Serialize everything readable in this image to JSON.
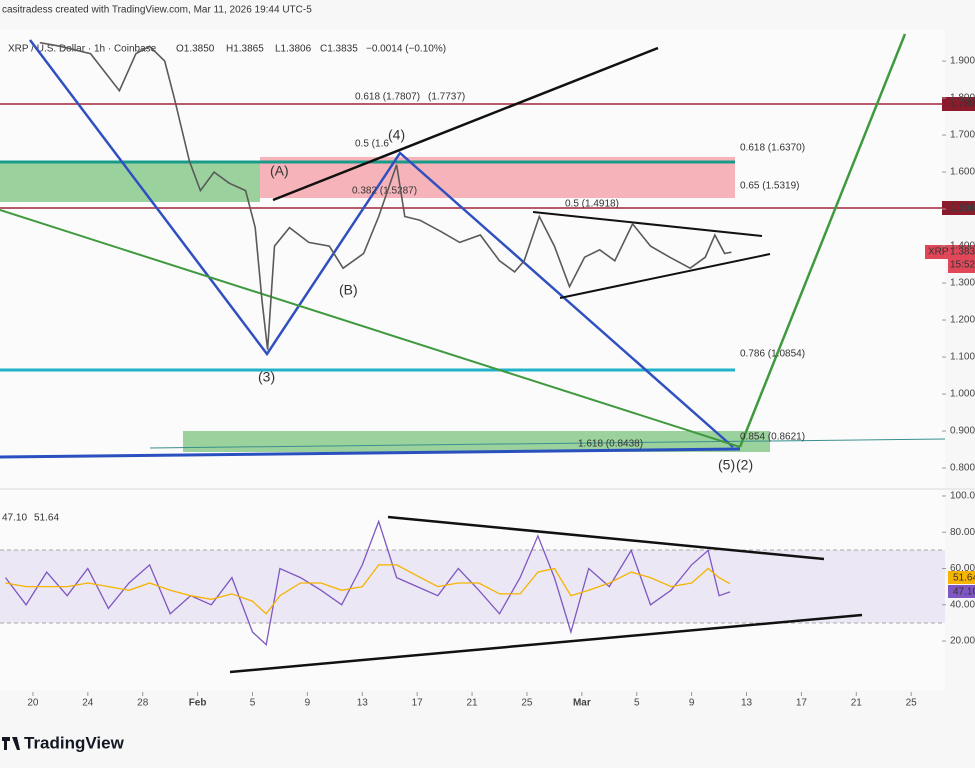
{
  "header": {
    "attribution": "casitradess created with TradingView.com, Mar 11, 2026 19:44 UTC-5",
    "symbol": "XRP / U.S. Dollar · 1h · Coinbase",
    "open": "O1.3850",
    "high": "H1.3865",
    "low": "L1.3806",
    "close": "C1.3835",
    "change": "−0.0014 (−0.10%)"
  },
  "annotations": {
    "fib_1": "0.618 (1.6370)",
    "fib_2": "0.65 (1.5319)",
    "fib_3": "0.5 (1.4918)",
    "fib_4": "0.786 (1.0854)",
    "fib_5": "0.854 (0.8621)",
    "fib_6": "1.618 (0.8438)",
    "fib_7": "0.618 (1.7807)",
    "fib_8": "(1.7737)",
    "fib_9": "0.5 (1.6",
    "fib_10": "0.382 (1.5287)",
    "wave_a": "(A)",
    "wave_b": "(B)",
    "wave_3": "(3)",
    "wave_4": "(4)",
    "wave_5": "(5)",
    "wave_2": "(2)",
    "level_1": "1.780",
    "level_2": "1.501",
    "symbol_tag": "XRPUSD",
    "last_price": "1.383",
    "countdown": "15:52"
  },
  "chart_data": [
    {
      "type": "line",
      "series": [
        {
          "name": "XRPUSD",
          "color": "#5a5a5a",
          "x": [
            20.5,
            22,
            24.2,
            26.3,
            27.5,
            28.5,
            29.6,
            30.3,
            31.4,
            32.2,
            33.2,
            34.3,
            35.5,
            36.2,
            36.7,
            37.1,
            37.6,
            38.7,
            40.1,
            41.6,
            42.6,
            44.1,
            45.2,
            46.5,
            47.1,
            48.2,
            49.7,
            51.1,
            52.6,
            54,
            55.1,
            55.8,
            56.9,
            58,
            59.1,
            60.2,
            61.3,
            62.4,
            63.7,
            65,
            66.4,
            67.9,
            69,
            69.7,
            70.4,
            70.9
          ],
          "values": [
            1.95,
            1.94,
            1.92,
            1.82,
            1.92,
            1.94,
            1.9,
            1.8,
            1.63,
            1.55,
            1.6,
            1.57,
            1.55,
            1.45,
            1.25,
            1.12,
            1.4,
            1.45,
            1.41,
            1.4,
            1.34,
            1.38,
            1.48,
            1.62,
            1.48,
            1.47,
            1.44,
            1.41,
            1.43,
            1.36,
            1.33,
            1.36,
            1.48,
            1.4,
            1.29,
            1.37,
            1.39,
            1.36,
            1.46,
            1.4,
            1.37,
            1.34,
            1.37,
            1.43,
            1.38,
            1.3835
          ]
        }
      ],
      "xlim": [
        17.6,
        86.1
      ],
      "xticks": [
        20,
        24,
        28,
        {
          "value": 32,
          "label": "Feb"
        },
        {
          "value": 36,
          "label": "5"
        },
        {
          "value": 40,
          "label": "9"
        },
        {
          "value": 44,
          "label": "13"
        },
        {
          "value": 48,
          "label": "17"
        },
        {
          "value": 52,
          "label": "21"
        },
        {
          "value": 56,
          "label": "25"
        },
        {
          "value": 60,
          "label": "Mar"
        },
        {
          "value": 64,
          "label": "5"
        },
        {
          "value": 68,
          "label": "9"
        },
        {
          "value": 72,
          "label": "13"
        },
        {
          "value": 76,
          "label": "17"
        },
        {
          "value": 80,
          "label": "21"
        },
        {
          "value": 84,
          "label": "25"
        }
      ],
      "ylim": [
        0.746,
        1.984
      ],
      "yticks": [
        {
          "value": 0.8,
          "label": "0.800"
        },
        {
          "value": 0.9,
          "label": "0.900"
        },
        {
          "value": 1.0,
          "label": "1.000"
        },
        {
          "value": 1.1,
          "label": "1.100"
        },
        {
          "value": 1.2,
          "label": "1.200"
        },
        {
          "value": 1.3,
          "label": "1.300"
        },
        {
          "value": 1.4,
          "label": "1.400"
        },
        {
          "value": 1.5,
          "label": "1.500"
        },
        {
          "value": 1.6,
          "label": "1.600"
        },
        {
          "value": 1.7,
          "label": "1.700"
        },
        {
          "value": 1.8,
          "label": "1.800"
        },
        {
          "value": 1.9,
          "label": "1.900"
        }
      ]
    },
    {
      "type": "line",
      "legend_values": [
        "47.10",
        "51.64"
      ],
      "series": [
        {
          "name": "RSI",
          "color": "#7e57c2",
          "x": [
            18,
            19.5,
            21,
            22.5,
            24,
            25.5,
            27,
            28.5,
            30,
            31.5,
            33,
            34.5,
            36,
            37,
            38,
            39.5,
            41,
            42.5,
            44,
            45.2,
            46.5,
            48,
            49.5,
            51,
            52.5,
            54,
            55.5,
            56.8,
            58,
            59.2,
            60.5,
            62,
            63.6,
            65,
            66.5,
            68,
            69.2,
            70,
            70.8
          ],
          "values": [
            55,
            40,
            58,
            45,
            60,
            38,
            52,
            62,
            35,
            45,
            40,
            55,
            25,
            18,
            60,
            55,
            48,
            40,
            62,
            86,
            55,
            50,
            45,
            60,
            48,
            35,
            55,
            78,
            55,
            25,
            60,
            50,
            70,
            40,
            48,
            62,
            70,
            45,
            47.1
          ]
        },
        {
          "name": "RSI-based MA",
          "color": "#f5b400",
          "x": [
            18,
            19.5,
            21,
            22.5,
            24,
            25.5,
            27,
            28.5,
            30,
            31.5,
            33,
            34.5,
            36,
            37,
            38,
            39.5,
            41,
            42.5,
            44,
            45.2,
            46.5,
            48,
            49.5,
            51,
            52.5,
            54,
            55.5,
            56.8,
            58,
            59.2,
            60.5,
            62,
            63.6,
            65,
            66.5,
            68,
            69.2,
            70,
            70.8
          ],
          "values": [
            52,
            50,
            50,
            50,
            52,
            50,
            48,
            52,
            48,
            45,
            43,
            46,
            42,
            35,
            45,
            52,
            52,
            48,
            50,
            62,
            62,
            56,
            50,
            52,
            52,
            46,
            46,
            58,
            60,
            45,
            48,
            52,
            58,
            55,
            50,
            52,
            60,
            55,
            51.64
          ]
        }
      ],
      "xlim": [
        17.6,
        86.1
      ],
      "ylim": [
        -7,
        103.3
      ],
      "yticks": [
        {
          "value": 20,
          "label": "20.00"
        },
        {
          "value": 40,
          "label": "40.00"
        },
        {
          "value": 60,
          "label": "60.00"
        },
        {
          "value": 80,
          "label": "80.00"
        },
        {
          "value": 100,
          "label": "100.00"
        }
      ]
    }
  ],
  "footer": {
    "logo": "TradingView"
  }
}
